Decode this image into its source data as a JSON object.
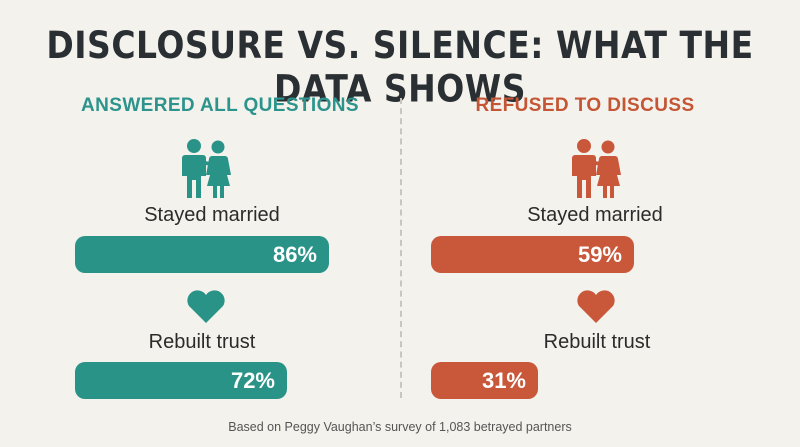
{
  "title": "DISCLOSURE VS. SILENCE: WHAT THE DATA SHOWS",
  "colors": {
    "answered": "#2a9388",
    "refused": "#c9573a",
    "background": "#f4f2ec"
  },
  "icons": {
    "couple": "couple-icon",
    "heart": "heart-icon"
  },
  "chart_data": {
    "type": "bar",
    "orientation": "horizontal",
    "title": "DISCLOSURE VS. SILENCE: WHAT THE DATA SHOWS",
    "groups": [
      "ANSWERED ALL QUESTIONS",
      "REFUSED TO DISCUSS"
    ],
    "categories": [
      "Stayed married",
      "Rebuilt trust"
    ],
    "series": [
      {
        "name": "ANSWERED ALL QUESTIONS",
        "values": [
          86,
          72
        ],
        "labels": [
          "86%",
          "72%"
        ]
      },
      {
        "name": "REFUSED TO DISCUSS",
        "values": [
          59,
          31
        ],
        "labels": [
          "59%",
          "31%"
        ]
      }
    ],
    "xlim": [
      0,
      100
    ],
    "footnote": "Based on Peggy Vaughan’s survey of 1,083 betrayed partners"
  }
}
